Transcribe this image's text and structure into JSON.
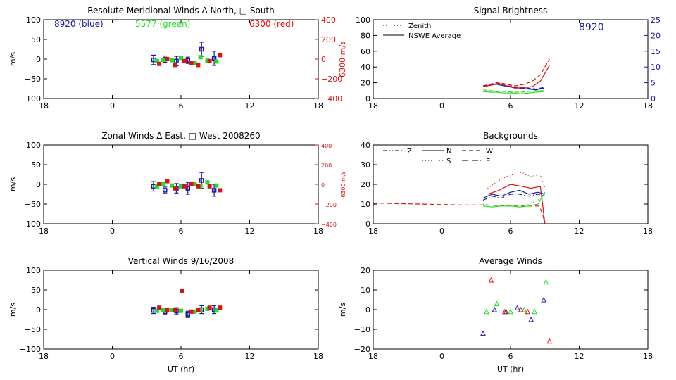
{
  "chart_data": [
    {
      "type": "scatter",
      "title": "Resolute Meridional Winds Δ North, □ South",
      "ylabel": "m/s",
      "y2label": "6300 m/s",
      "xlim": [
        -6,
        18
      ],
      "ylim": [
        -100,
        100
      ],
      "y2lim": [
        -400,
        400
      ],
      "x_ticks": [
        "18",
        "0",
        "6",
        "12",
        "18"
      ],
      "y_ticks": [
        "100",
        "50",
        "0",
        "−50",
        "−100"
      ],
      "y2_ticks": [
        "400",
        "200",
        "0",
        "−200",
        "−400"
      ],
      "annotations": [
        {
          "text": "8920 (blue)",
          "color": "#1a1aa6"
        },
        {
          "text": "5577 (green)",
          "color": "#22dd22"
        },
        {
          "text": "6300 (red)",
          "color": "#dd1111"
        }
      ],
      "series": [
        {
          "color": "#1a1aa6",
          "x": [
            3.6,
            4.6,
            5.6,
            6.6,
            7.8,
            8.9
          ],
          "y": [
            -2,
            0,
            -5,
            -3,
            25,
            2
          ],
          "err": [
            12,
            8,
            12,
            8,
            18,
            18
          ]
        },
        {
          "color": "#22dd22",
          "x": [
            3.9,
            4.4,
            5.2,
            6.0,
            7.2,
            7.7,
            8.3,
            9.1
          ],
          "y": [
            -5,
            -2,
            -3,
            3,
            -10,
            5,
            -4,
            -6
          ]
        },
        {
          "color": "#dd1111",
          "x": [
            4.1,
            4.8,
            5.5,
            6.3,
            6.9,
            7.5,
            8.5,
            9.4
          ],
          "y": [
            -12,
            0,
            -15,
            -5,
            -10,
            -15,
            -5,
            10
          ]
        }
      ]
    },
    {
      "type": "line",
      "title": "Signal Brightness",
      "xlim": [
        -6,
        18
      ],
      "ylim": [
        0,
        100
      ],
      "y2lim": [
        0,
        25
      ],
      "x_ticks": [
        "18",
        "0",
        "6",
        "12",
        "18"
      ],
      "y_ticks": [
        "100",
        "80",
        "60",
        "40",
        "20",
        "0"
      ],
      "y2_ticks": [
        "25",
        "20",
        "15",
        "10",
        "5",
        "0"
      ],
      "legend": [
        {
          "text": "Zenith",
          "dash": "1,3"
        },
        {
          "text": "NSWE Average",
          "dash": ""
        }
      ],
      "annotations": [
        {
          "text": "8920",
          "color": "#1a1aa6"
        }
      ],
      "series": [
        {
          "color": "#1a1aa6",
          "dash": "",
          "x": [
            3.6,
            4.2,
            4.8,
            5.5,
            6.2,
            6.9,
            7.6,
            8.2,
            8.9
          ],
          "y": [
            15,
            17,
            18,
            16,
            14,
            13,
            12,
            11,
            13
          ]
        },
        {
          "color": "#1a1aa6",
          "dash": "6,3",
          "x": [
            3.6,
            4.2,
            4.8,
            5.5,
            6.2,
            6.9,
            7.6,
            8.2,
            8.9
          ],
          "y": [
            16,
            18,
            20,
            17,
            15,
            14,
            13,
            12,
            14
          ]
        },
        {
          "color": "#22dd22",
          "dash": "",
          "x": [
            3.6,
            4.2,
            4.8,
            5.5,
            6.2,
            6.9,
            7.6,
            8.2,
            8.9
          ],
          "y": [
            9,
            8,
            8,
            7,
            7,
            6,
            7,
            8,
            9
          ]
        },
        {
          "color": "#22dd22",
          "dash": "6,3",
          "x": [
            3.6,
            4.2,
            4.8,
            5.5,
            6.2,
            6.9,
            7.6,
            8.2,
            8.9
          ],
          "y": [
            11,
            10,
            9,
            9,
            8,
            8,
            9,
            10,
            10
          ]
        },
        {
          "color": "#dd1111",
          "dash": "",
          "x": [
            3.6,
            4.3,
            5.0,
            5.7,
            6.4,
            7.2,
            7.9,
            8.6,
            9.4
          ],
          "y": [
            15,
            17,
            19,
            16,
            13,
            14,
            15,
            22,
            42
          ]
        },
        {
          "color": "#dd1111",
          "dash": "6,3",
          "x": [
            3.6,
            4.3,
            5.0,
            5.7,
            6.4,
            7.2,
            7.9,
            8.6,
            9.4
          ],
          "y": [
            16,
            18,
            20,
            18,
            16,
            18,
            22,
            30,
            50
          ]
        }
      ]
    },
    {
      "type": "scatter",
      "title": "Zonal Winds Δ East, □ West 2008260",
      "ylabel": "m/s",
      "y2label": "6300 m/s",
      "xlim": [
        -6,
        18
      ],
      "ylim": [
        -100,
        100
      ],
      "y2lim": [
        -400,
        400
      ],
      "x_ticks": [
        "18",
        "0",
        "6",
        "12",
        "18"
      ],
      "y_ticks": [
        "100",
        "50",
        "0",
        "−50",
        "−100"
      ],
      "y2_ticks": [
        "400",
        "200",
        "0",
        "−200",
        "−400"
      ],
      "series": [
        {
          "color": "#1a1aa6",
          "x": [
            3.6,
            4.6,
            5.6,
            6.6,
            7.8,
            8.9
          ],
          "y": [
            -5,
            -15,
            -10,
            -10,
            10,
            -15
          ],
          "err": [
            12,
            8,
            12,
            15,
            20,
            15
          ]
        },
        {
          "color": "#22dd22",
          "x": [
            3.9,
            4.4,
            5.2,
            6.0,
            7.2,
            7.7,
            8.3,
            9.1
          ],
          "y": [
            -5,
            0,
            -3,
            -5,
            0,
            -5,
            5,
            -3
          ]
        },
        {
          "color": "#dd1111",
          "x": [
            4.1,
            4.8,
            5.5,
            6.3,
            6.9,
            7.5,
            8.5,
            9.4
          ],
          "y": [
            0,
            8,
            -10,
            -5,
            0,
            -5,
            -5,
            -15
          ]
        }
      ]
    },
    {
      "type": "line",
      "title": "Backgrounds",
      "xlim": [
        -6,
        18
      ],
      "ylim": [
        0,
        40
      ],
      "x_ticks": [
        "18",
        "0",
        "6",
        "12",
        "18"
      ],
      "y_ticks": [
        "40",
        "30",
        "20",
        "10",
        "0"
      ],
      "legend": [
        {
          "text": "Z",
          "dash": "6,3,1,3,1,3"
        },
        {
          "text": "N",
          "dash": ""
        },
        {
          "text": "W",
          "dash": "6,4"
        },
        {
          "text": "S",
          "dash": "1,3"
        },
        {
          "text": "E",
          "dash": "8,3,1,3"
        }
      ],
      "series": [
        {
          "color": "#dd1111",
          "dash": "6,4",
          "x": [
            -6,
            -2,
            2,
            4,
            6,
            7.5,
            8.5,
            8.8,
            9.0
          ],
          "y": [
            10.5,
            10,
            9.5,
            9.5,
            9,
            9,
            9,
            5,
            0
          ]
        },
        {
          "color": "#dd1111",
          "dash": "1,3",
          "x": [
            4.0,
            5.0,
            6.0,
            7.0,
            7.8,
            8.6,
            9.0
          ],
          "y": [
            18,
            22,
            25,
            26,
            24,
            25,
            18
          ]
        },
        {
          "color": "#dd1111",
          "dash": "",
          "x": [
            4.0,
            5.0,
            6.0,
            7.0,
            7.8,
            8.6,
            8.8,
            9.0
          ],
          "y": [
            15,
            17,
            20,
            19,
            18,
            19,
            10,
            0
          ]
        },
        {
          "color": "#1a1aa6",
          "dash": "",
          "x": [
            3.6,
            4.4,
            5.2,
            6.0,
            6.8,
            7.6,
            8.4,
            9.0
          ],
          "y": [
            13,
            15,
            14,
            16,
            17,
            15,
            16,
            15
          ]
        },
        {
          "color": "#1a1aa6",
          "dash": "6,3,1,3",
          "x": [
            3.6,
            4.4,
            5.2,
            6.0,
            6.8,
            7.6,
            8.4,
            9.0
          ],
          "y": [
            12,
            14,
            13,
            15,
            15,
            14,
            15,
            14
          ]
        },
        {
          "color": "#22dd22",
          "dash": "",
          "x": [
            3.6,
            4.4,
            5.2,
            6.0,
            6.8,
            7.6,
            8.4,
            9.0
          ],
          "y": [
            9,
            8.5,
            9,
            9,
            8.5,
            9,
            10,
            16
          ]
        },
        {
          "color": "#22dd22",
          "dash": "1,3",
          "x": [
            3.6,
            4.4,
            5.2,
            6.0,
            6.8,
            7.6,
            8.4,
            9.0
          ],
          "y": [
            10,
            9.5,
            9,
            9.5,
            9,
            10,
            12,
            15
          ]
        }
      ]
    },
    {
      "type": "scatter",
      "title": "Vertical Winds 9/16/2008",
      "ylabel": "m/s",
      "xlabel": "UT (hr)",
      "xlim": [
        -6,
        18
      ],
      "ylim": [
        -100,
        100
      ],
      "x_ticks": [
        "18",
        "0",
        "6",
        "12",
        "18"
      ],
      "y_ticks": [
        "100",
        "50",
        "0",
        "−50",
        "−100"
      ],
      "series": [
        {
          "color": "#1a1aa6",
          "x": [
            3.6,
            4.6,
            5.6,
            6.6,
            7.8,
            8.9
          ],
          "y": [
            -2,
            -5,
            -3,
            -12,
            0,
            0
          ],
          "err": [
            8,
            6,
            8,
            8,
            10,
            10
          ]
        },
        {
          "color": "#22dd22",
          "x": [
            3.9,
            4.4,
            5.2,
            6.0,
            7.2,
            7.7,
            8.3,
            9.1
          ],
          "y": [
            -3,
            0,
            0,
            -3,
            -5,
            0,
            2,
            -2
          ]
        },
        {
          "color": "#dd1111",
          "x": [
            4.1,
            4.8,
            5.5,
            6.1,
            6.9,
            7.5,
            8.5,
            9.4
          ],
          "y": [
            5,
            0,
            0,
            47,
            -5,
            0,
            5,
            5
          ]
        }
      ]
    },
    {
      "type": "scatter",
      "title": "Average Winds",
      "ylabel": "m/s",
      "xlabel": "UT (hr)",
      "xlim": [
        -6,
        18
      ],
      "ylim": [
        -20,
        20
      ],
      "x_ticks": [
        "18",
        "0",
        "6",
        "12",
        "18"
      ],
      "y_ticks": [
        "20",
        "10",
        "0",
        "−10",
        "−20"
      ],
      "series": [
        {
          "color": "#1a1aa6",
          "x": [
            3.6,
            4.6,
            5.6,
            6.6,
            7.8,
            8.9
          ],
          "y": [
            -12,
            0,
            -1,
            1,
            -5,
            5
          ]
        },
        {
          "color": "#22dd22",
          "x": [
            3.9,
            4.8,
            6.0,
            7.2,
            8.1,
            9.1
          ],
          "y": [
            -1,
            3,
            -1,
            0,
            -1,
            14
          ]
        },
        {
          "color": "#dd1111",
          "x": [
            4.3,
            5.5,
            6.9,
            7.5,
            9.4
          ],
          "y": [
            15,
            -1,
            0,
            -1,
            -16
          ]
        }
      ]
    }
  ]
}
